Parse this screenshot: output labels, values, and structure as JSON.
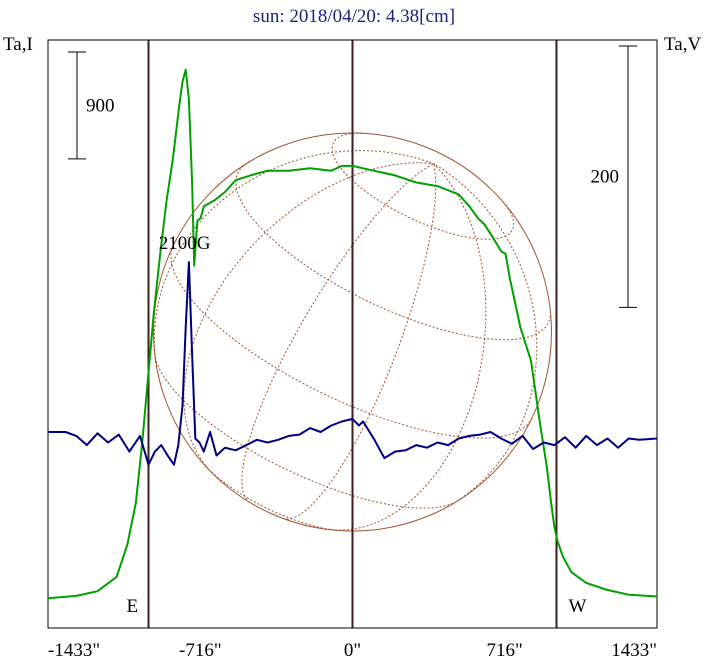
{
  "chart_data": {
    "type": "line",
    "title": "sun: 2018/04/20: 4.38[cm]",
    "left_axis_label": "Ta,I",
    "right_axis_label": "Ta,V",
    "xlim": [
      -1433,
      1433
    ],
    "x_ticks": [
      {
        "value": -1433,
        "label": "-1433\""
      },
      {
        "value": -716,
        "label": "-716\""
      },
      {
        "value": 0,
        "label": "0\""
      },
      {
        "value": 716,
        "label": "716\""
      },
      {
        "value": 1433,
        "label": "1433\""
      }
    ],
    "limb_lines": [
      -960,
      0,
      960
    ],
    "limb_labels": {
      "east": "E",
      "west": "W"
    },
    "scale_bar_I": {
      "label": "900",
      "span": 900
    },
    "scale_bar_V": {
      "label": "200",
      "span": 200
    },
    "annotation": {
      "text": "2100G",
      "x": -790
    },
    "I_ylim": [
      -250,
      4700
    ],
    "V_ylim": [
      -150,
      300
    ],
    "series": [
      {
        "label": "Ta,I",
        "color": "#00a000",
        "x": [
          -1433,
          -1300,
          -1200,
          -1110,
          -1060,
          -1020,
          -990,
          -960,
          -935,
          -905,
          -875,
          -845,
          -815,
          -800,
          -785,
          -770,
          -755,
          -745,
          -730,
          -715,
          -700,
          -650,
          -600,
          -550,
          -480,
          -400,
          -300,
          -200,
          -100,
          -50,
          0,
          50,
          100,
          200,
          300,
          400,
          500,
          550,
          590,
          620,
          660,
          700,
          720,
          740,
          790,
          840,
          880,
          915,
          935,
          950,
          965,
          990,
          1030,
          1100,
          1200,
          1300,
          1433
        ],
        "values": [
          0,
          20,
          60,
          180,
          450,
          800,
          1300,
          1900,
          2400,
          2900,
          3350,
          3700,
          4150,
          4350,
          4450,
          4200,
          3500,
          2800,
          3180,
          3200,
          3300,
          3350,
          3420,
          3520,
          3560,
          3600,
          3600,
          3620,
          3600,
          3640,
          3640,
          3620,
          3600,
          3560,
          3500,
          3470,
          3400,
          3300,
          3200,
          3150,
          3040,
          2920,
          2900,
          2700,
          2280,
          2000,
          1500,
          1100,
          800,
          600,
          480,
          350,
          220,
          130,
          70,
          30,
          15
        ]
      },
      {
        "label": "Ta,V",
        "color": "#00007f",
        "x": [
          -1433,
          -1350,
          -1300,
          -1250,
          -1200,
          -1150,
          -1100,
          -1050,
          -1000,
          -960,
          -930,
          -900,
          -870,
          -840,
          -820,
          -800,
          -785,
          -770,
          -755,
          -740,
          -720,
          -700,
          -670,
          -640,
          -600,
          -550,
          -500,
          -450,
          -400,
          -350,
          -300,
          -250,
          -200,
          -150,
          -100,
          -50,
          0,
          30,
          50,
          100,
          150,
          200,
          250,
          300,
          350,
          400,
          450,
          500,
          550,
          600,
          650,
          700,
          750,
          800,
          850,
          900,
          950,
          1000,
          1050,
          1100,
          1150,
          1200,
          1250,
          1300,
          1350,
          1433
        ],
        "values": [
          0,
          0,
          -3,
          -10,
          -1,
          -8,
          -2,
          -15,
          -3,
          -25,
          -15,
          -10,
          -18,
          -25,
          -10,
          20,
          80,
          130,
          60,
          -5,
          -8,
          -15,
          0,
          -18,
          -12,
          -14,
          -10,
          -6,
          -8,
          -6,
          -3,
          -2,
          3,
          0,
          5,
          8,
          10,
          5,
          8,
          -5,
          -20,
          -15,
          -14,
          -10,
          -12,
          -8,
          -10,
          -5,
          -3,
          -2,
          0,
          -5,
          -9,
          -3,
          -13,
          -8,
          -10,
          -4,
          -12,
          -3,
          -10,
          -5,
          -12,
          -5,
          -6,
          -5
        ]
      }
    ]
  }
}
